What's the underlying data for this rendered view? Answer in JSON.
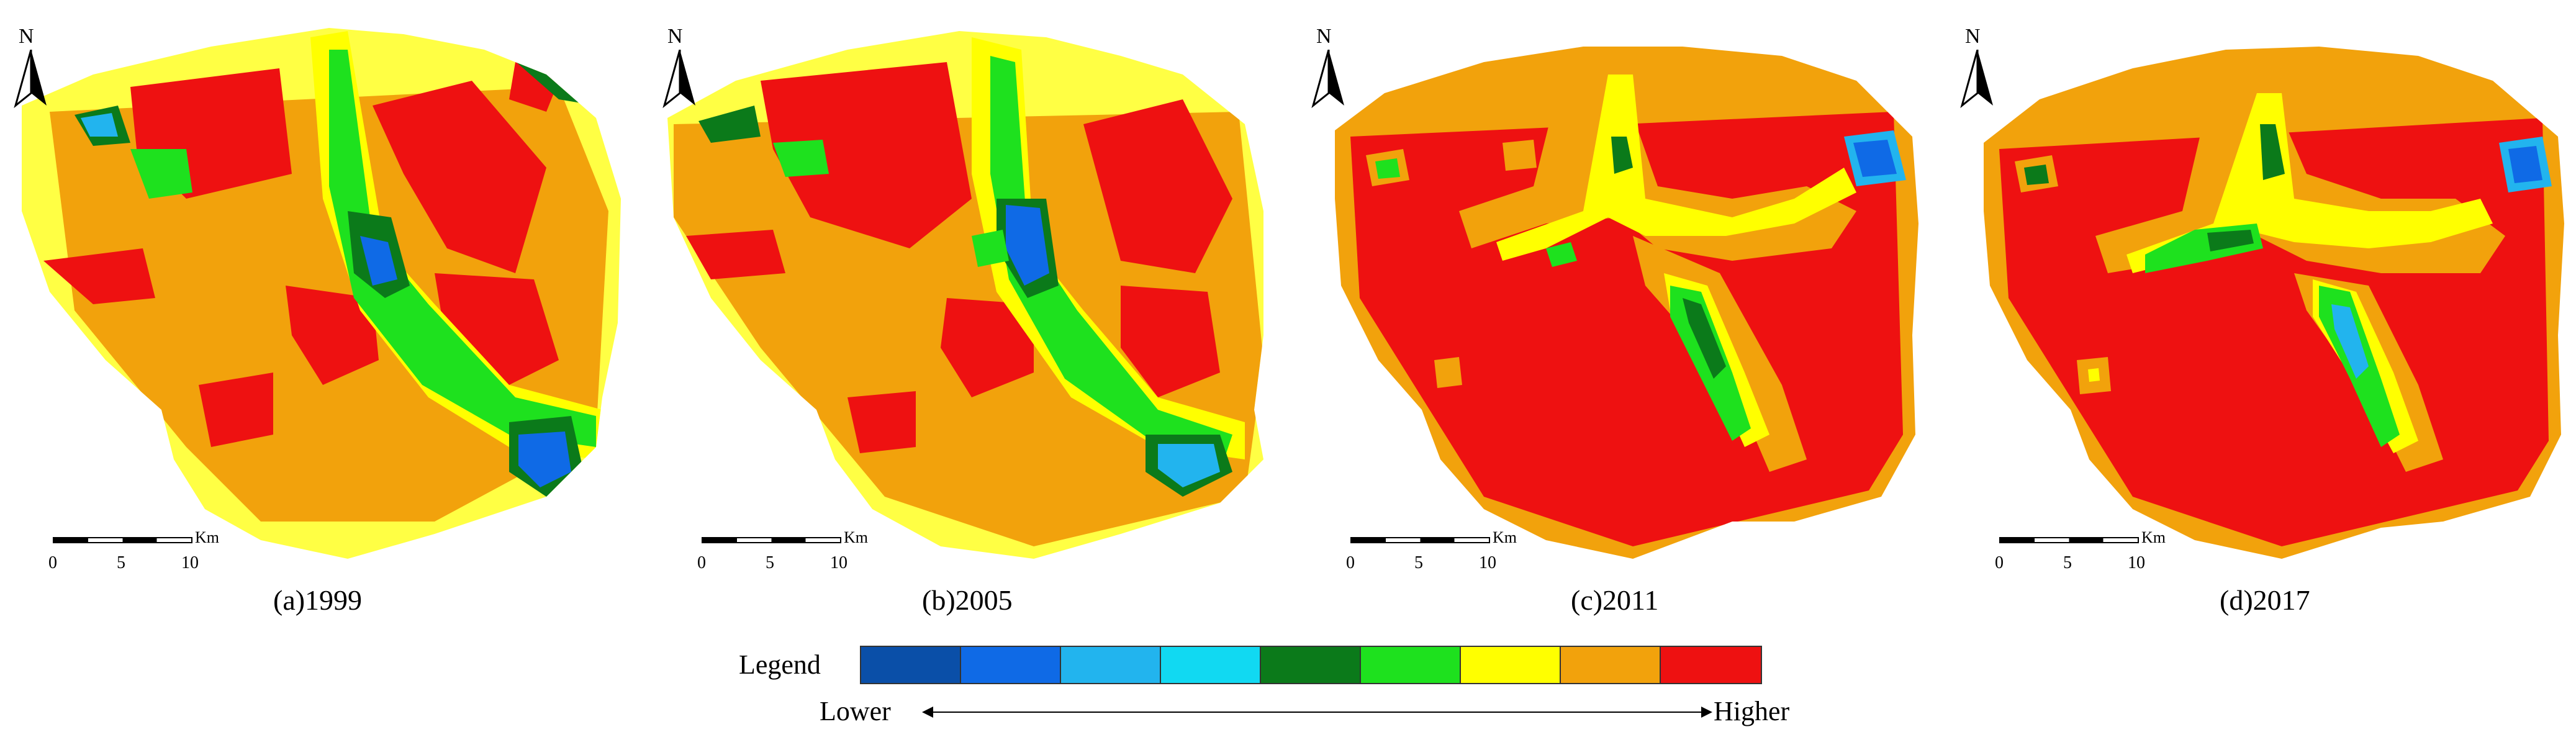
{
  "panels": [
    {
      "caption": "(a)1999",
      "north": "N",
      "scale": {
        "ticks": [
          "0",
          "5",
          "10"
        ],
        "unit": "Km"
      },
      "base_color": "#f2a20c"
    },
    {
      "caption": "(b)2005",
      "north": "N",
      "scale": {
        "ticks": [
          "0",
          "5",
          "10"
        ],
        "unit": "Km"
      },
      "base_color": "#f2a20c"
    },
    {
      "caption": "(c)2011",
      "north": "N",
      "scale": {
        "ticks": [
          "0",
          "5",
          "10"
        ],
        "unit": "Km"
      },
      "base_color": "#ee1111"
    },
    {
      "caption": "(d)2017",
      "north": "N",
      "scale": {
        "ticks": [
          "0",
          "5",
          "10"
        ],
        "unit": "Km"
      },
      "base_color": "#ee1111"
    }
  ],
  "legend": {
    "label": "Legend",
    "low": "Lower",
    "high": "Higher",
    "colors": [
      "#0a4fa8",
      "#0f6ae6",
      "#22b4ee",
      "#11d9f2",
      "#0b7a1a",
      "#1ee11e",
      "#ffff00",
      "#f2a20c",
      "#ee1111"
    ]
  },
  "icons": {
    "north_arrow": "north-arrow-icon"
  }
}
